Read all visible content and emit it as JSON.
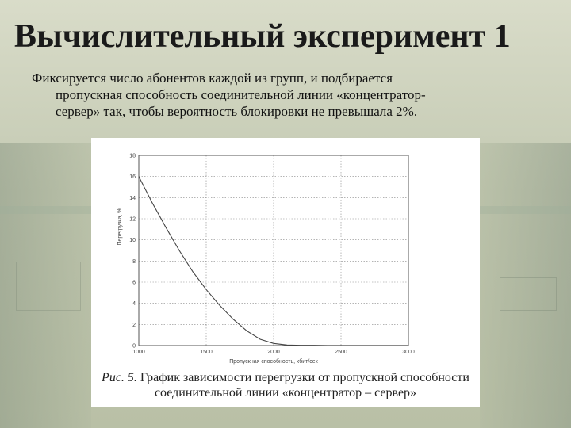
{
  "slide": {
    "title": "Вычислительный эксперимент 1",
    "text_lines": [
      "Фиксируется число абонентов каждой из групп, и подбирается",
      "пропускная способность соединительной линии «концентратор-",
      "сервер» так, чтобы вероятность блокировки не превышала 2%."
    ]
  },
  "caption": {
    "number": "Рис. 5.",
    "line1": "График зависимости перегрузки от пропускной способности",
    "line2": "соединительной линии «концентратор – сервер»"
  },
  "chart_data": {
    "type": "line",
    "xlabel": "Пропускная способность, кбит/сек",
    "ylabel": "Перегрузка, %",
    "xlim": [
      1000,
      3000
    ],
    "ylim": [
      0,
      18
    ],
    "x_ticks": [
      "1000",
      "1500",
      "2000",
      "2500",
      "3000"
    ],
    "y_ticks": [
      "0",
      "2",
      "4",
      "6",
      "8",
      "10",
      "12",
      "14",
      "16",
      "18"
    ],
    "grid": true,
    "series": [
      {
        "x": [
          1000,
          1100,
          1200,
          1300,
          1400,
          1500,
          1600,
          1700,
          1800,
          1900,
          2000,
          2100,
          2200,
          2300,
          2400,
          2500,
          2600,
          2700,
          2800,
          2900,
          3000
        ],
        "y": [
          16,
          13.5,
          11.2,
          9.0,
          7.0,
          5.3,
          3.8,
          2.5,
          1.4,
          0.6,
          0.2,
          0.05,
          0.02,
          0.02,
          0.01,
          0.01,
          0.01,
          0.01,
          0.01,
          0.01,
          0.01
        ]
      }
    ]
  }
}
